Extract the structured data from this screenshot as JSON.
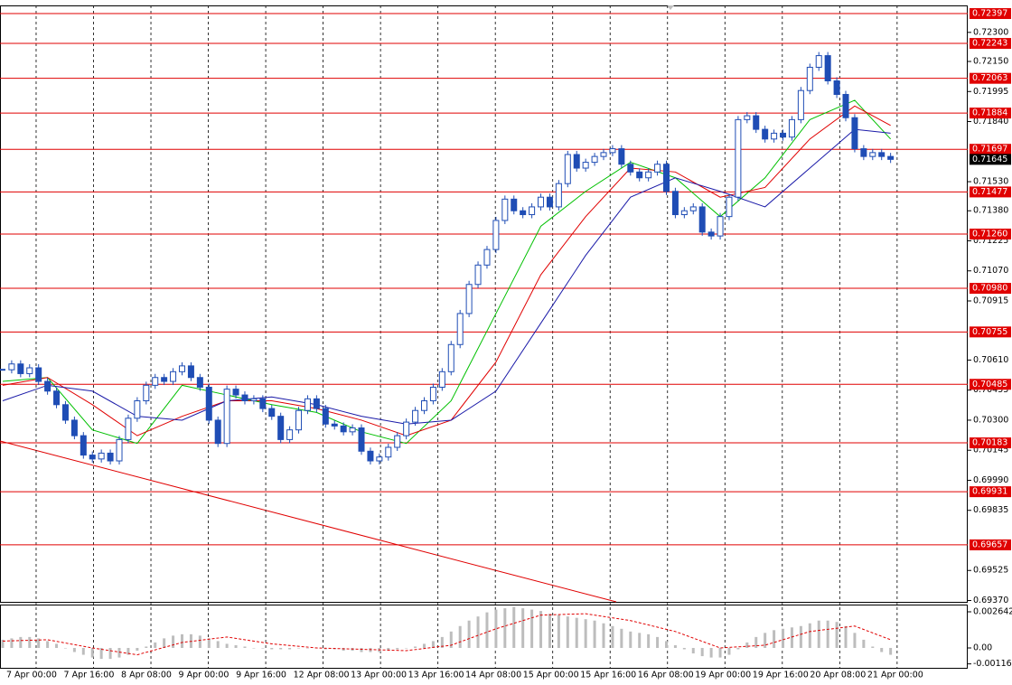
{
  "chart_data": {
    "type": "candlestick",
    "color": "#1f4db5",
    "xlim": [
      -0.3,
      107.6
    ],
    "ylim": [
      0.69363,
      0.72439
    ],
    "yticks": [
      {
        "value": 0.723,
        "label": "0.72300"
      },
      {
        "value": 0.7215,
        "label": "0.72150"
      },
      {
        "value": 0.71995,
        "label": "0.71995"
      },
      {
        "value": 0.7184,
        "label": "0.71840"
      },
      {
        "value": 0.7153,
        "label": "0.71530"
      },
      {
        "value": 0.7138,
        "label": "0.71380"
      },
      {
        "value": 0.71225,
        "label": "0.71225"
      },
      {
        "value": 0.7107,
        "label": "0.71070"
      },
      {
        "value": 0.70915,
        "label": "0.70915"
      },
      {
        "value": 0.7061,
        "label": "0.70610"
      },
      {
        "value": 0.70455,
        "label": "0.70455"
      },
      {
        "value": 0.703,
        "label": "0.70300"
      },
      {
        "value": 0.70145,
        "label": "0.70145"
      },
      {
        "value": 0.6999,
        "label": "0.69990"
      },
      {
        "value": 0.69835,
        "label": "0.69835"
      },
      {
        "value": 0.69525,
        "label": "0.69525"
      },
      {
        "value": 0.6937,
        "label": "0.69370"
      }
    ],
    "xticks": [
      {
        "value": 0,
        "label": "7 Apr 00:00"
      },
      {
        "value": 6.4,
        "label": "7 Apr 16:00"
      },
      {
        "value": 12.8,
        "label": "8 Apr 08:00"
      },
      {
        "value": 19.2,
        "label": "9 Apr 00:00"
      },
      {
        "value": 25.6,
        "label": "9 Apr 16:00"
      },
      {
        "value": 32,
        "label": "12 Apr 08:00"
      },
      {
        "value": 38.4,
        "label": "13 Apr 00:00"
      },
      {
        "value": 44.8,
        "label": "13 Apr 16:00"
      },
      {
        "value": 51.2,
        "label": "14 Apr 08:00"
      },
      {
        "value": 57.6,
        "label": "15 Apr 00:00"
      },
      {
        "value": 64,
        "label": "15 Apr 16:00"
      },
      {
        "value": 70.4,
        "label": "16 Apr 08:00"
      },
      {
        "value": 76.8,
        "label": "19 Apr 00:00"
      },
      {
        "value": 83.2,
        "label": "19 Apr 16:00"
      },
      {
        "value": 89.6,
        "label": "20 Apr 08:00"
      },
      {
        "value": 96,
        "label": "21 Apr 00:00"
      }
    ],
    "close": [
      0.7056,
      0.7059,
      0.7054,
      0.7057,
      0.705,
      0.7045,
      0.7038,
      0.703,
      0.7022,
      0.7012,
      0.701,
      0.7013,
      0.7009,
      0.702,
      0.7031,
      0.704,
      0.7048,
      0.7052,
      0.705,
      0.7055,
      0.7058,
      0.7052,
      0.7047,
      0.703,
      0.7018,
      0.7046,
      0.7043,
      0.704,
      0.7041,
      0.7036,
      0.7032,
      0.702,
      0.7025,
      0.7035,
      0.7041,
      0.7036,
      0.7028,
      0.7027,
      0.7024,
      0.7026,
      0.7014,
      0.7009,
      0.7011,
      0.7016,
      0.7022,
      0.7029,
      0.7035,
      0.704,
      0.7047,
      0.7055,
      0.7069,
      0.7085,
      0.71,
      0.711,
      0.7118,
      0.7133,
      0.7144,
      0.7138,
      0.7136,
      0.714,
      0.7145,
      0.714,
      0.7152,
      0.7167,
      0.716,
      0.7163,
      0.7166,
      0.7168,
      0.717,
      0.7162,
      0.7158,
      0.7155,
      0.7158,
      0.7162,
      0.7148,
      0.7136,
      0.7138,
      0.714,
      0.7127,
      0.7125,
      0.7135,
      0.7145,
      0.7185,
      0.7187,
      0.718,
      0.7175,
      0.7178,
      0.7176,
      0.7185,
      0.72,
      0.7212,
      0.7218,
      0.7205,
      0.7198,
      0.7186,
      0.717,
      0.7166,
      0.7168,
      0.7166,
      0.71645
    ],
    "moving_averages": {
      "x": [
        0,
        5,
        10,
        15,
        20,
        25,
        30,
        35,
        40,
        45,
        50,
        55,
        60,
        65,
        70,
        75,
        80,
        85,
        90,
        95,
        99
      ],
      "series": [
        {
          "color": "#00c000",
          "values": [
            0.705,
            0.7052,
            0.7025,
            0.7018,
            0.7048,
            0.7043,
            0.7038,
            0.7034,
            0.7024,
            0.7018,
            0.704,
            0.7085,
            0.713,
            0.7148,
            0.7163,
            0.7155,
            0.7135,
            0.7155,
            0.7185,
            0.7195,
            0.7175
          ]
        },
        {
          "color": "#e00000",
          "values": [
            0.7048,
            0.7052,
            0.7038,
            0.7022,
            0.7032,
            0.704,
            0.704,
            0.7036,
            0.703,
            0.7022,
            0.703,
            0.706,
            0.7105,
            0.7135,
            0.716,
            0.7158,
            0.7145,
            0.715,
            0.7175,
            0.7192,
            0.7182
          ]
        },
        {
          "color": "#1a1aa8",
          "values": [
            0.704,
            0.7048,
            0.7045,
            0.7032,
            0.703,
            0.704,
            0.7042,
            0.7038,
            0.7032,
            0.7028,
            0.703,
            0.7045,
            0.708,
            0.7115,
            0.7145,
            0.7155,
            0.7148,
            0.714,
            0.716,
            0.718,
            0.7178
          ]
        }
      ]
    },
    "levels": {
      "color": "#e00000",
      "values": [
        {
          "value": 0.72397,
          "label": "0.72397"
        },
        {
          "value": 0.72243,
          "label": "0.72243"
        },
        {
          "value": 0.72063,
          "label": "0.72063"
        },
        {
          "value": 0.71884,
          "label": "0.71884"
        },
        {
          "value": 0.71697,
          "label": "0.71697"
        },
        {
          "value": 0.71477,
          "label": "0.71477"
        },
        {
          "value": 0.7126,
          "label": "0.71260"
        },
        {
          "value": 0.7098,
          "label": "0.70980"
        },
        {
          "value": 0.70755,
          "label": "0.70755"
        },
        {
          "value": 0.70485,
          "label": "0.70485"
        },
        {
          "value": 0.70183,
          "label": "0.70183"
        },
        {
          "value": 0.69931,
          "label": "0.69931"
        },
        {
          "value": 0.69657,
          "label": "0.69657"
        }
      ]
    },
    "current_price": {
      "value": 0.71645,
      "label": "0.71645"
    },
    "oscillator": {
      "ylim": [
        -0.00152,
        0.00317
      ],
      "yticks": [
        {
          "value": 0.002642,
          "label": "0.002642"
        },
        {
          "value": 0,
          "label": "0.00"
        },
        {
          "value": -0.001166,
          "label": "-0.001166"
        }
      ],
      "hist_color": "#bdbdbd",
      "histogram": [
        0.0006,
        0.0007,
        0.0008,
        0.0008,
        0.0007,
        0.0005,
        0.0003,
        0,
        -0.0003,
        -0.0005,
        -0.0007,
        -0.0008,
        -0.0008,
        -0.0007,
        -0.0005,
        -0.0002,
        0.0001,
        0.0004,
        0.0007,
        0.0009,
        0.001,
        0.001,
        0.0009,
        0.0007,
        0.0005,
        0.0003,
        0.0002,
        0.0001,
        0,
        0,
        -0.0001,
        -0.0001,
        -0.0001,
        0,
        0,
        0,
        -0.0001,
        -0.0001,
        -0.0002,
        -0.0002,
        -0.0003,
        -0.0003,
        -0.0003,
        -0.0002,
        -0.0001,
        0,
        0.0001,
        0.0003,
        0.0005,
        0.0008,
        0.0012,
        0.0016,
        0.002,
        0.0023,
        0.0026,
        0.0028,
        0.0029,
        0.003,
        0.0029,
        0.0028,
        0.0027,
        0.0025,
        0.0024,
        0.0023,
        0.0022,
        0.0021,
        0.002,
        0.0018,
        0.0016,
        0.0014,
        0.0012,
        0.0011,
        0.001,
        0.0008,
        0.0005,
        0.0002,
        -0.0001,
        -0.0004,
        -0.0006,
        -0.0007,
        -0.0007,
        -0.0005,
        -0.0001,
        0.0004,
        0.0008,
        0.0011,
        0.0013,
        0.0014,
        0.0015,
        0.0016,
        0.0018,
        0.002,
        0.002,
        0.0019,
        0.0016,
        0.0011,
        0.0006,
        0.0001,
        -0.0003,
        -0.0005
      ],
      "signal_color": "#e00000",
      "signal": [
        0.0005,
        0.0006,
        0,
        -0.0005,
        0.0004,
        0.0008,
        0.0003,
        0,
        -0.0001,
        -0.0002,
        0.0002,
        0.0014,
        0.0024,
        0.0025,
        0.002,
        0.0012,
        0,
        0.0002,
        0.0012,
        0.0016,
        0.0006
      ]
    }
  }
}
